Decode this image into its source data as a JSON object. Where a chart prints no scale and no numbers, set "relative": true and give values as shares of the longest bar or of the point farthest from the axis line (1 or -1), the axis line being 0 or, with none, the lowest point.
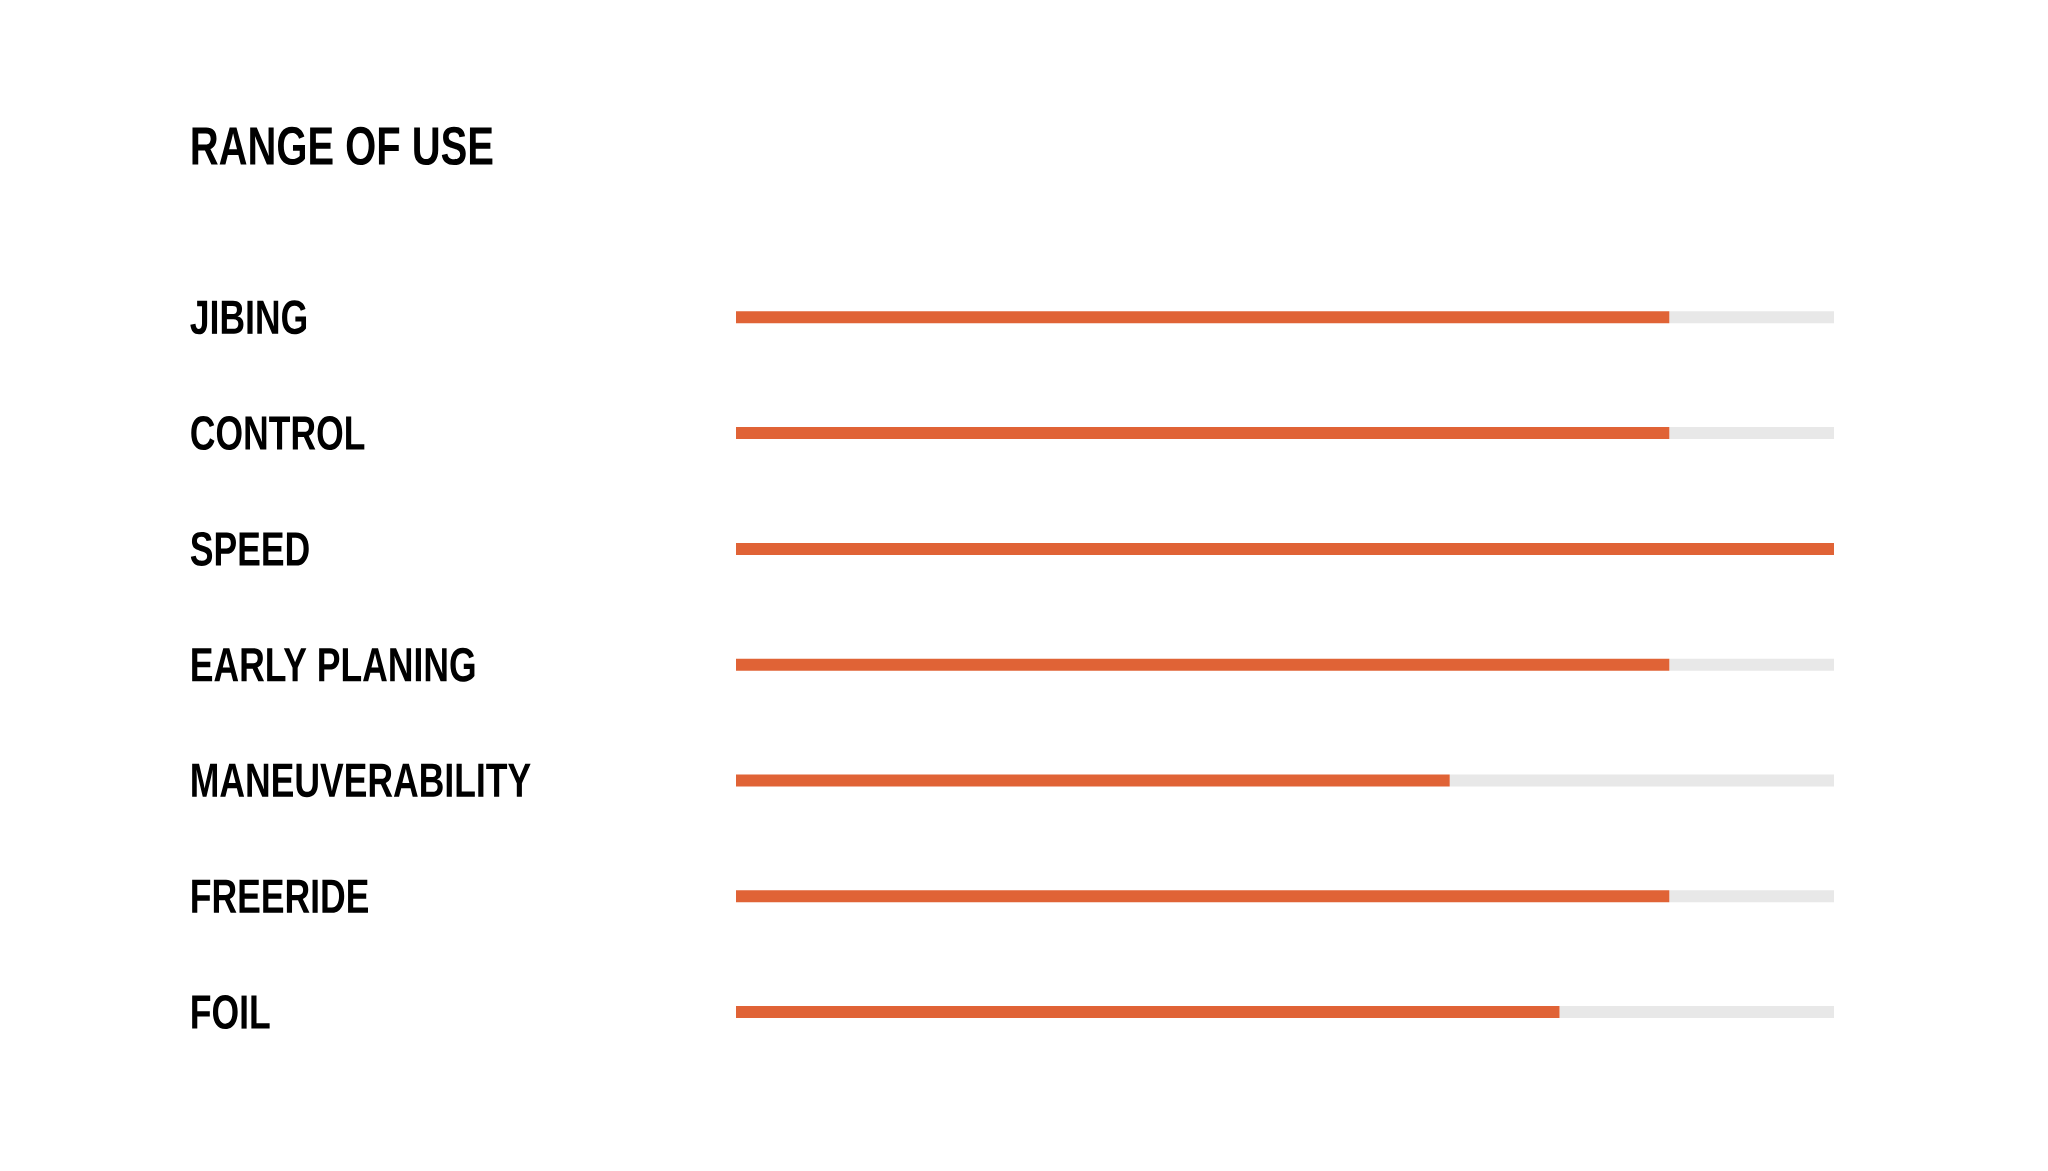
{
  "chart_data": {
    "type": "bar",
    "orientation": "horizontal",
    "stacked": true,
    "relative": true,
    "title": "RANGE OF USE",
    "categories": [
      "JIBING",
      "CONTROL",
      "SPEED",
      "EARLY PLANING",
      "MANEUVERABILITY",
      "FREERIDE",
      "FOIL"
    ],
    "series": [
      {
        "color": "#e06336",
        "values": [
          0.85,
          0.85,
          1,
          0.85,
          0.65,
          0.85,
          0.75
        ]
      },
      {
        "color": "#e8e8e8",
        "values": [
          0.15,
          0.15,
          0,
          0.15,
          0.35,
          0.15,
          0.25
        ]
      }
    ]
  }
}
